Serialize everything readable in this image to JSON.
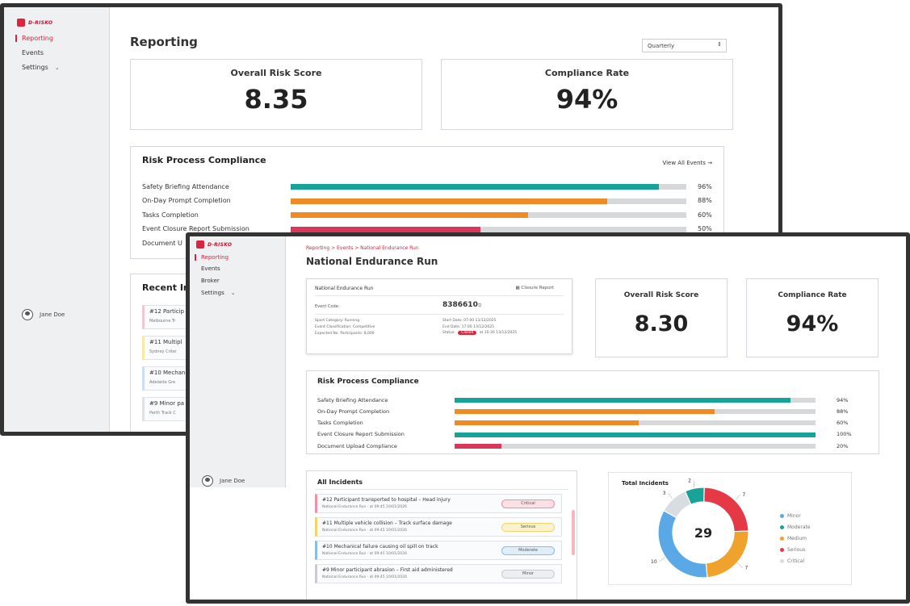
{
  "brand": {
    "name": "D-RISKO",
    "accent": "#d9263c"
  },
  "back": {
    "nav": {
      "reporting": "Reporting",
      "events": "Events",
      "settings": "Settings"
    },
    "user": "Jane Doe",
    "page_title": "Reporting",
    "period_select": "Quarterly",
    "kpis": {
      "risk_label": "Overall Risk Score",
      "risk_value": "8.35",
      "compliance_label": "Compliance Rate",
      "compliance_value": "94%"
    },
    "compliance": {
      "title": "Risk Process Compliance",
      "view_all": "View All Events →",
      "rows": [
        {
          "label": "Safety Briefing Attendance",
          "pct": "96%",
          "fill": 0.93,
          "color": "#17a398"
        },
        {
          "label": "On-Day Prompt Completion",
          "pct": "88%",
          "fill": 0.8,
          "color": "#f08a24"
        },
        {
          "label": "Tasks Completion",
          "pct": "60%",
          "fill": 0.6,
          "color": "#f08a24"
        },
        {
          "label": "Event Closure Report Submission",
          "pct": "50%",
          "fill": 0.48,
          "color": "#d9385a"
        },
        {
          "label": "Document U",
          "pct": "",
          "fill": 0,
          "color": "#17a398"
        }
      ]
    },
    "recent": {
      "title": "Recent In",
      "items": [
        {
          "title": "#12 Particip",
          "sub": "Melbourne Tr",
          "color": "#f5c6cf"
        },
        {
          "title": "#11 Multipl",
          "sub": "Sydney Critei",
          "color": "#fbe8a6"
        },
        {
          "title": "#10 Mechan",
          "sub": "Adelaide Gre",
          "color": "#c9dff5"
        },
        {
          "title": "#9 Minor pa",
          "sub": "Perth Track C",
          "color": "#dfe1e4"
        }
      ]
    }
  },
  "front": {
    "nav": {
      "reporting": "Reporting",
      "events": "Events",
      "broker": "Broker",
      "settings": "Settings"
    },
    "user": "Jane Doe",
    "breadcrumb": "Reporting > Events > National Endurance Run",
    "page_title": "National Endurance Run",
    "details": {
      "title": "National Endurance Run",
      "closure_report": "Closure Report",
      "event_code_label": "Event Code:",
      "event_code": "8386610",
      "left_lines": [
        "Sport Category: Running",
        "Event Classification: Competitive",
        "Expected No. Participants: 8,000"
      ],
      "right_lines": [
        "Start Date: 07:00 13/12/2025",
        "End Date: 17:00 13/12/2025"
      ],
      "status_label": "Status:",
      "status_badge": "Closed",
      "status_time": "at 10:30 13/12/2025"
    },
    "kpis": {
      "risk_label": "Overall Risk Score",
      "risk_value": "8.30",
      "compliance_label": "Compliance Rate",
      "compliance_value": "94%"
    },
    "compliance": {
      "title": "Risk Process Compliance",
      "rows": [
        {
          "label": "Safety Briefing Attendance",
          "pct": "94%",
          "fill": 0.93,
          "color": "#17a398"
        },
        {
          "label": "On-Day Prompt Completion",
          "pct": "88%",
          "fill": 0.72,
          "color": "#f08a24"
        },
        {
          "label": "Tasks Completion",
          "pct": "60%",
          "fill": 0.51,
          "color": "#f08a24"
        },
        {
          "label": "Event Closure Report Submission",
          "pct": "100%",
          "fill": 1.0,
          "color": "#17a398"
        },
        {
          "label": "Document Upload Compliance",
          "pct": "20%",
          "fill": 0.13,
          "color": "#d9385a"
        }
      ]
    },
    "incidents": {
      "title": "All Incidents",
      "items": [
        {
          "title": "#12 Participant transported to hospital – Head injury",
          "sub": "National Endurance Run · at 09:45 10/01/2026",
          "badge": "Critical",
          "accent": "#f08fa5",
          "badge_bg": "#fbe1e6"
        },
        {
          "title": "#11 Multiple vehicle collision – Track surface damage",
          "sub": "National Endurance Run · at 09:45 10/01/2026",
          "badge": "Serious",
          "accent": "#f5d36b",
          "badge_bg": "#fdf2cf"
        },
        {
          "title": "#10 Mechanical failure causing oil spill on track",
          "sub": "National Endurance Run · at 09:45 10/01/2026",
          "badge": "Moderate",
          "accent": "#8bbce8",
          "badge_bg": "#e0eefa"
        },
        {
          "title": "#9 Minor participant abrasion – First aid administered",
          "sub": "National Endurance Run · at 09:45 10/01/2026",
          "badge": "Minor",
          "accent": "#c8ccd1",
          "badge_bg": "#eceef0"
        }
      ]
    },
    "total_incidents": {
      "title": "Total Incidents",
      "total": "29"
    }
  },
  "chart_data": {
    "type": "pie",
    "title": "Total Incidents",
    "center_label": "29",
    "categories": [
      "Minor",
      "Moderate",
      "Medium",
      "Serious",
      "Critical"
    ],
    "values": [
      10,
      2,
      7,
      7,
      3
    ],
    "colors": [
      "#5aa9e6",
      "#17a398",
      "#f0a32c",
      "#e53946",
      "#d9dde1"
    ],
    "legend": "right"
  }
}
